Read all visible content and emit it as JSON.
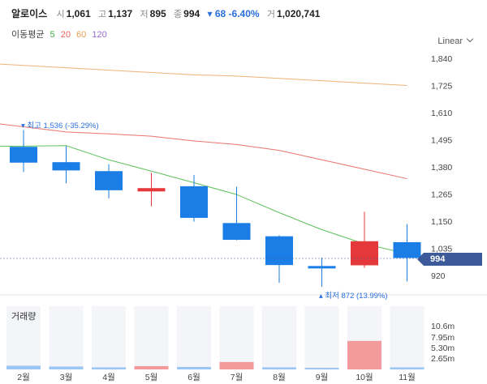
{
  "header": {
    "name": "알로이스",
    "open_label": "시",
    "open_value": "1,061",
    "high_label": "고",
    "high_value": "1,137",
    "low_label": "저",
    "low_value": "895",
    "close_label": "종",
    "close_value": "994",
    "change_text": "▾ 68 -6.40%",
    "volume_label": "거",
    "volume_value": "1,020,741"
  },
  "moving_average": {
    "label": "이동평균",
    "periods": [
      "5",
      "20",
      "60",
      "120"
    ],
    "colors": [
      "#3fae49",
      "#e3615e",
      "#e6a04f",
      "#9a6bd6"
    ]
  },
  "scale_selector": {
    "value": "Linear",
    "icon": "chevron-down-icon"
  },
  "colors": {
    "up": "#e5383b",
    "down": "#1a7ee6",
    "ma20": "#e8736f",
    "ma60": "#f0b27a",
    "ma5": "#5dc15d",
    "price_tag": "#3c5a99"
  },
  "annotations": {
    "high": "▾ 최고 1,536 (-35.29%)",
    "low": "▴ 최저 872 (13.99%)"
  },
  "current_price_label": "994",
  "volume_panel": {
    "title": "거래량",
    "ticks": [
      "10.6m",
      "7.95m",
      "5.30m",
      "2.65m"
    ]
  },
  "chart_data": {
    "type": "candlestick",
    "categories": [
      "2월",
      "3월",
      "4월",
      "5월",
      "6월",
      "7월",
      "8월",
      "9월",
      "10월",
      "11월"
    ],
    "ohlc": [
      {
        "open": 1398,
        "high": 1536,
        "low": 1358,
        "close": 1465
      },
      {
        "open": 1400,
        "high": 1468,
        "low": 1310,
        "close": 1365
      },
      {
        "open": 1362,
        "high": 1391,
        "low": 1247,
        "close": 1281
      },
      {
        "open": 1290,
        "high": 1355,
        "low": 1213,
        "close": 1276
      },
      {
        "open": 1298,
        "high": 1346,
        "low": 1148,
        "close": 1164
      },
      {
        "open": 1142,
        "high": 1296,
        "low": 1069,
        "close": 1071
      },
      {
        "open": 1086,
        "high": 1090,
        "low": 889,
        "close": 964
      },
      {
        "open": 958,
        "high": 995,
        "low": 872,
        "close": 960
      },
      {
        "open": 963,
        "high": 1190,
        "low": 952,
        "close": 1065
      },
      {
        "open": 1061,
        "high": 1137,
        "low": 895,
        "close": 994
      }
    ],
    "ma5": [
      1468,
      1470,
      1410,
      1362,
      1313,
      1263,
      1186,
      1114,
      1054,
      1012
    ],
    "ma20_line": [
      1550,
      1528,
      1520,
      1510,
      1490,
      1475,
      1450,
      1410,
      1370,
      1330
    ],
    "ma60_line": [
      1810,
      1800,
      1790,
      1780,
      1770,
      1765,
      1755,
      1745,
      1735,
      1725
    ],
    "volume": [
      0.9,
      0.7,
      0.5,
      0.8,
      0.6,
      1.8,
      0.5,
      0.4,
      6.9,
      0.5
    ],
    "volume_dir": [
      "down",
      "down",
      "down",
      "up",
      "down",
      "up",
      "down",
      "down",
      "up",
      "down"
    ],
    "y_ticks": [
      "1,840",
      "1,725",
      "1,610",
      "1,495",
      "1,380",
      "1,265",
      "1,150",
      "1,035",
      "920"
    ],
    "ylim": [
      850,
      1880
    ]
  }
}
